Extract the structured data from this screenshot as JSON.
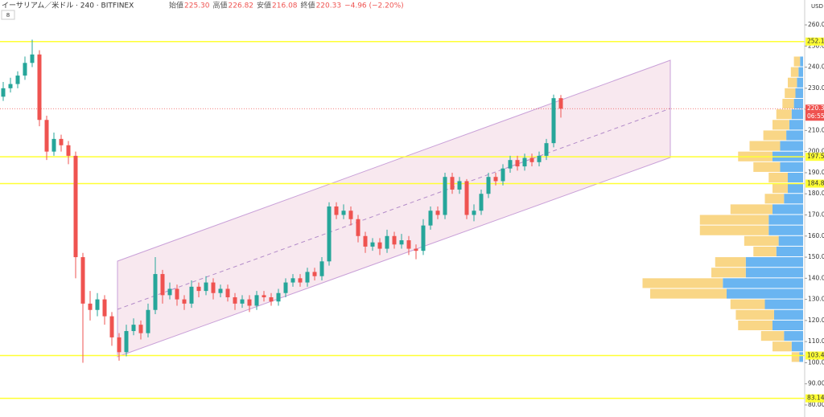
{
  "chart_data": {
    "type": "candlestick",
    "header": {
      "title": "イーサリアム／米ドル · 240 · BITFINEX",
      "badge": "8",
      "legend": [
        {
          "name": "始値",
          "value": "225.30"
        },
        {
          "name": "高値",
          "value": "226.82"
        },
        {
          "name": "安値",
          "value": "216.08"
        },
        {
          "name": "終値",
          "value": "220.33"
        }
      ],
      "change": "−4.96 (−2.20%)"
    },
    "currency": "USD",
    "ylim": [
      80,
      260
    ],
    "yticks": [
      {
        "value": 80,
        "label": "80.00"
      },
      {
        "value": 90,
        "label": "90.00"
      },
      {
        "value": 100,
        "label": "100.00"
      },
      {
        "value": 110,
        "label": "110.00"
      },
      {
        "value": 120,
        "label": "120.00"
      },
      {
        "value": 130,
        "label": "130.00"
      },
      {
        "value": 140,
        "label": "140.00"
      },
      {
        "value": 150,
        "label": "150.00"
      },
      {
        "value": 160,
        "label": "160.00"
      },
      {
        "value": 170,
        "label": "170.00"
      },
      {
        "value": 180,
        "label": "180.00"
      },
      {
        "value": 190,
        "label": "190.00"
      },
      {
        "value": 200,
        "label": "200.00"
      },
      {
        "value": 210,
        "label": "210.00"
      },
      {
        "value": 220,
        "label": "220.00"
      },
      {
        "value": 230,
        "label": "230.00"
      },
      {
        "value": 240,
        "label": "240.00"
      },
      {
        "value": 250,
        "label": "250.00"
      },
      {
        "value": 260,
        "label": "260.00"
      }
    ],
    "grid": false,
    "up_color": "#26a69a",
    "down_color": "#ef5350",
    "ohlc": [
      [
        226,
        233,
        224,
        230
      ],
      [
        230,
        235,
        228,
        232
      ],
      [
        232,
        238,
        230,
        236
      ],
      [
        236,
        245,
        234,
        242
      ],
      [
        242,
        253,
        240,
        246
      ],
      [
        246,
        248,
        212,
        215
      ],
      [
        215,
        217,
        196,
        200
      ],
      [
        200,
        209,
        198,
        206
      ],
      [
        206,
        208,
        200,
        203
      ],
      [
        203,
        205,
        194,
        198
      ],
      [
        198,
        200,
        140,
        150
      ],
      [
        150,
        152,
        100,
        128
      ],
      [
        128,
        134,
        120,
        125
      ],
      [
        125,
        133,
        122,
        130
      ],
      [
        130,
        132,
        118,
        122
      ],
      [
        122,
        124,
        108,
        112
      ],
      [
        112,
        114,
        101,
        105
      ],
      [
        105,
        118,
        103,
        115
      ],
      [
        115,
        121,
        113,
        118
      ],
      [
        118,
        120,
        111,
        114
      ],
      [
        114,
        128,
        112,
        125
      ],
      [
        125,
        150,
        123,
        142
      ],
      [
        142,
        144,
        128,
        132
      ],
      [
        132,
        138,
        130,
        135
      ],
      [
        135,
        137,
        127,
        130
      ],
      [
        130,
        132,
        125,
        128
      ],
      [
        128,
        139,
        126,
        136
      ],
      [
        136,
        138,
        131,
        134
      ],
      [
        134,
        141,
        132,
        138
      ],
      [
        138,
        140,
        130,
        133
      ],
      [
        133,
        137,
        131,
        135
      ],
      [
        135,
        137,
        129,
        131
      ],
      [
        131,
        133,
        125,
        128
      ],
      [
        128,
        132,
        126,
        130
      ],
      [
        130,
        132,
        124,
        127
      ],
      [
        127,
        134,
        125,
        132
      ],
      [
        132,
        134,
        129,
        131
      ],
      [
        131,
        133,
        127,
        129
      ],
      [
        129,
        135,
        127,
        133
      ],
      [
        133,
        140,
        131,
        138
      ],
      [
        138,
        142,
        136,
        140
      ],
      [
        140,
        142,
        136,
        138
      ],
      [
        138,
        145,
        136,
        143
      ],
      [
        143,
        145,
        139,
        141
      ],
      [
        141,
        150,
        139,
        148
      ],
      [
        148,
        176,
        146,
        174
      ],
      [
        174,
        176,
        168,
        170
      ],
      [
        170,
        175,
        168,
        172
      ],
      [
        172,
        174,
        165,
        168
      ],
      [
        168,
        170,
        157,
        160
      ],
      [
        160,
        162,
        152,
        155
      ],
      [
        155,
        159,
        153,
        157
      ],
      [
        157,
        159,
        151,
        154
      ],
      [
        154,
        163,
        152,
        160
      ],
      [
        160,
        162,
        154,
        156
      ],
      [
        156,
        161,
        154,
        158
      ],
      [
        158,
        160,
        151,
        154
      ],
      [
        154,
        156,
        149,
        153
      ],
      [
        153,
        168,
        151,
        165
      ],
      [
        165,
        174,
        163,
        172
      ],
      [
        172,
        174,
        168,
        170
      ],
      [
        170,
        190,
        168,
        188
      ],
      [
        188,
        190,
        180,
        182
      ],
      [
        182,
        188,
        180,
        186
      ],
      [
        186,
        187,
        168,
        170
      ],
      [
        170,
        175,
        167,
        172
      ],
      [
        172,
        182,
        170,
        180
      ],
      [
        180,
        190,
        178,
        188
      ],
      [
        188,
        190,
        184,
        186
      ],
      [
        186,
        194,
        184,
        192
      ],
      [
        192,
        198,
        190,
        196
      ],
      [
        196,
        198,
        191,
        193
      ],
      [
        193,
        199,
        191,
        197
      ],
      [
        197,
        199,
        193,
        195
      ],
      [
        195,
        200,
        193,
        198
      ],
      [
        198,
        206,
        196,
        204
      ],
      [
        204,
        227,
        202,
        225.3
      ],
      [
        225.3,
        226.82,
        216.08,
        220.33
      ]
    ],
    "levels": [
      252.12,
      197.52,
      184.84,
      {
        "value": 103.4,
        "label": "103.40"
      },
      83.14
    ],
    "level_color": "#ffff33",
    "last_price": 220.33,
    "countdown": "06:55",
    "last_color": "#ef5350",
    "volume_profile": {
      "prices": [
        240,
        235,
        230,
        225,
        220,
        215,
        210,
        205,
        200,
        195,
        190,
        185,
        180,
        175,
        170,
        165,
        160,
        155,
        150,
        145,
        140,
        135,
        130,
        125,
        120,
        115,
        110,
        105,
        100
      ],
      "up": [
        8,
        10,
        12,
        14,
        15,
        20,
        22,
        30,
        40,
        45,
        35,
        25,
        20,
        25,
        55,
        90,
        90,
        45,
        30,
        40,
        45,
        105,
        100,
        45,
        50,
        45,
        30,
        25,
        10
      ],
      "down": [
        4,
        6,
        8,
        10,
        12,
        15,
        18,
        22,
        30,
        40,
        30,
        20,
        20,
        25,
        40,
        45,
        45,
        32,
        35,
        75,
        75,
        105,
        100,
        50,
        38,
        40,
        25,
        15,
        5
      ],
      "up_color": "#f9d27a",
      "down_color": "#5aaef0"
    }
  }
}
